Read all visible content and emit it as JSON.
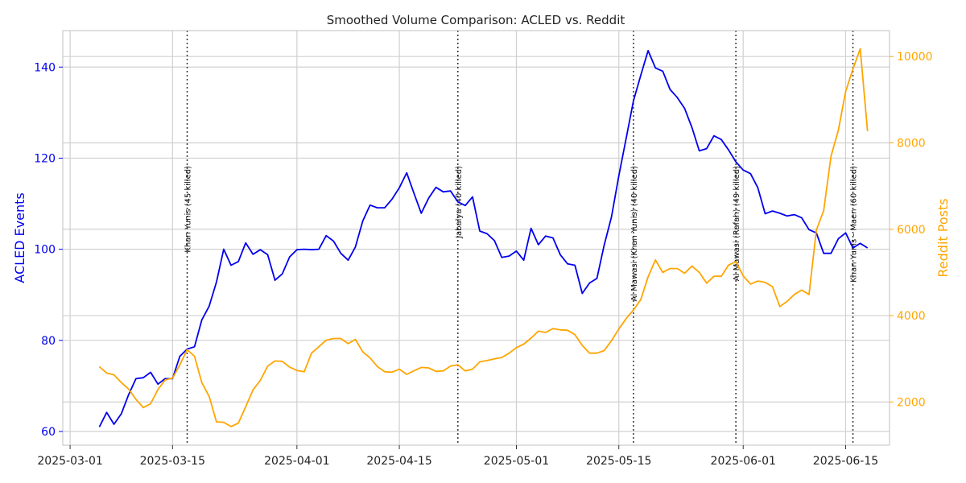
{
  "chart_data": {
    "type": "line",
    "title": "Smoothed Volume Comparison: ACLED vs. Reddit",
    "xlabel": "",
    "ylabel_left": "ACLED Events",
    "ylabel_right": "Reddit Posts",
    "x_range": [
      "2025-02-28",
      "2025-06-21"
    ],
    "x_ticks": [
      "2025-03-01",
      "2025-03-15",
      "2025-04-01",
      "2025-04-15",
      "2025-05-01",
      "2025-05-15",
      "2025-06-01",
      "2025-06-15"
    ],
    "y_left_range": [
      57,
      148
    ],
    "y_left_ticks": [
      60,
      80,
      100,
      120,
      140
    ],
    "y_right_range": [
      1000,
      10600
    ],
    "y_right_ticks": [
      2000,
      4000,
      6000,
      8000,
      10000
    ],
    "grid": true,
    "colors": {
      "acled": "#0000ee",
      "reddit": "#ffa500",
      "event_line": "#333333",
      "axis_left": "#0000ee",
      "axis_right": "#ffa500"
    },
    "series": [
      {
        "name": "ACLED Events",
        "axis": "left",
        "start_date": "2025-03-05",
        "values": [
          61,
          64.2,
          61.6,
          63.9,
          68.1,
          71.6,
          71.8,
          73,
          70.4,
          71.6,
          71.6,
          76.5,
          78.1,
          78.6,
          84.5,
          87.5,
          92.8,
          100,
          96.5,
          97.3,
          101.4,
          98.9,
          99.9,
          98.8,
          93.2,
          94.6,
          98.3,
          99.9,
          100,
          99.9,
          100,
          103,
          101.8,
          99.1,
          97.6,
          100.5,
          106.2,
          109.7,
          109.1,
          109.1,
          111,
          113.5,
          116.8,
          112.3,
          107.9,
          111.2,
          113.6,
          112.6,
          112.8,
          110.4,
          109.6,
          111.5,
          104,
          103.4,
          101.9,
          98.2,
          98.5,
          99.6,
          97.6,
          104.6,
          101,
          102.9,
          102.5,
          98.8,
          96.8,
          96.5,
          90.3,
          92.6,
          93.6,
          100.9,
          107.1,
          116.1,
          124.3,
          132.6,
          138.2,
          143.6,
          139.8,
          139.1,
          135.1,
          133.3,
          130.9,
          126.7,
          121.6,
          122.1,
          124.9,
          124.1,
          121.8,
          119.2,
          117.4,
          116.6,
          113.5,
          107.8,
          108.4,
          107.9,
          107.3,
          107.6,
          106.9,
          104.3,
          103.6,
          99.1,
          99.1,
          102.3,
          103.6,
          100.3,
          101.3,
          100.3
        ]
      },
      {
        "name": "Reddit Posts",
        "axis": "right",
        "start_date": "2025-03-05",
        "values": [
          2820,
          2670,
          2630,
          2450,
          2300,
          2060,
          1870,
          1960,
          2290,
          2510,
          2550,
          2860,
          3210,
          3060,
          2450,
          2130,
          1540,
          1530,
          1430,
          1510,
          1890,
          2280,
          2500,
          2830,
          2950,
          2940,
          2810,
          2730,
          2700,
          3130,
          3280,
          3430,
          3470,
          3470,
          3350,
          3450,
          3160,
          3020,
          2820,
          2700,
          2690,
          2760,
          2640,
          2720,
          2800,
          2790,
          2710,
          2720,
          2830,
          2860,
          2720,
          2760,
          2930,
          2960,
          3000,
          3030,
          3130,
          3260,
          3340,
          3480,
          3640,
          3610,
          3700,
          3670,
          3660,
          3560,
          3310,
          3130,
          3130,
          3190,
          3420,
          3690,
          3930,
          4130,
          4370,
          4900,
          5290,
          5000,
          5090,
          5090,
          4980,
          5150,
          5000,
          4750,
          4910,
          4910,
          5170,
          5250,
          4920,
          4730,
          4800,
          4770,
          4670,
          4210,
          4330,
          4490,
          4590,
          4490,
          5980,
          6430,
          7690,
          8290,
          9190,
          9710,
          10180,
          8270
        ]
      }
    ],
    "events": [
      {
        "date": "2025-03-17",
        "label": "Khan Yunis (45 killed)"
      },
      {
        "date": "2025-04-23",
        "label": "Jabalya (40 killed)"
      },
      {
        "date": "2025-05-17",
        "label": "Al Mawasi (Khan Yunis) (40 killed)"
      },
      {
        "date": "2025-05-31",
        "label": "Al Mawasi (Rafah) (49 killed)"
      },
      {
        "date": "2025-06-16",
        "label": "Khan Yunis - Maen (60 killed)"
      }
    ]
  }
}
